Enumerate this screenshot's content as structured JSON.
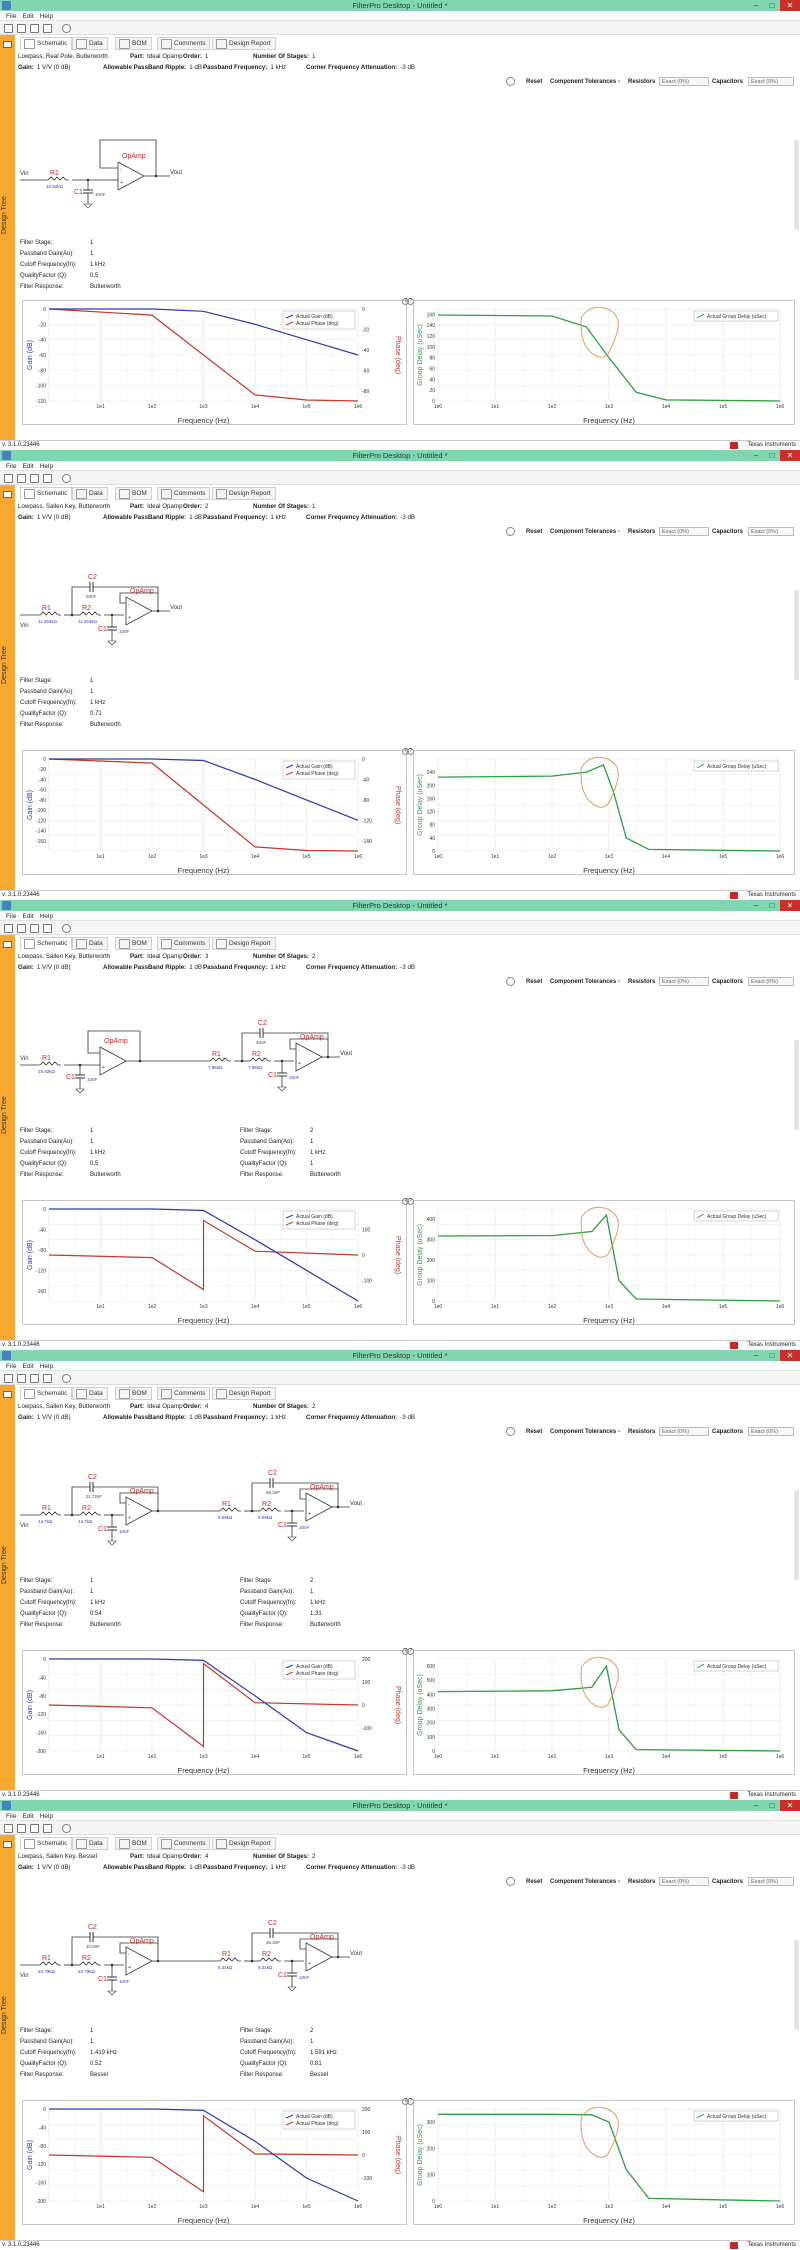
{
  "app": {
    "title": "FilterPro Desktop - Untitled *",
    "version": "v. 3.1.0.23446",
    "vendor": "Texas Instruments",
    "sidebar_label": "Design Tree",
    "menu": [
      "File",
      "Edit",
      "Help"
    ],
    "tabs": [
      "Schematic",
      "Data",
      "BOM",
      "Comments",
      "Design Report"
    ]
  },
  "labels": {
    "gain": "Gain:",
    "allowable_ripple": "Allowable PassBand Ripple:",
    "passband_frequency": "Passband Frequency:",
    "corner_attenuation": "Corner Frequency Attenuation:",
    "part": "Part:",
    "order": "Order:",
    "stages": "Number Of Stages:",
    "reset": "Reset",
    "tolerances": "Component Tolerances -",
    "resistors": "Resistors",
    "capacitors": "Capacitors",
    "filter_stage": "Filter Stage:",
    "passband_gain": "Passband Gain(Ao):",
    "cutoff": "Cutoff Frequency(fn):",
    "quality": "QualityFactor (Q):",
    "response": "Filter Response:",
    "freq_axis": "Frequency (Hz)",
    "gain_axis": "Gain (dB)",
    "phase_axis": "Phase (deg)",
    "delay_axis": "Group Delay (uSec)",
    "legend_gain": "Actual Gain (dB)",
    "legend_phase": "Actual Phase (deg)",
    "legend_delay": "Actual Group Delay (uSec)",
    "opamp": "OpAmp",
    "vin": "Vin",
    "vout": "Vout",
    "help": "?"
  },
  "icons": {
    "tabs": [
      "schematic-icon",
      "data-icon",
      "bom-icon",
      "comments-icon",
      "design-report-icon"
    ],
    "toolbar": [
      "home-icon",
      "new-icon",
      "open-icon",
      "save-icon",
      "help-icon"
    ]
  },
  "colors": {
    "titlebar": "#7fd6b1",
    "sidebar": "#f7a833",
    "gain": "#2b3aa8",
    "phase": "#c0392b",
    "delay": "#2e9e3e",
    "annotation": "#e0a060",
    "close": "#c9302c"
  },
  "chart_data": [
    {
      "type": "line",
      "design": "Lowpass, Real Pole, Butterworth",
      "x_ticks": [
        "1e0",
        "1e1",
        "1e2",
        "1e3",
        "1e4",
        "1e5",
        "1e6"
      ],
      "x_scale": "log",
      "gain": {
        "ylim": [
          -120,
          0
        ],
        "ticks": [
          "0",
          "-20",
          "-40",
          "-60",
          "-80",
          "-100",
          "-120"
        ],
        "series": [
          {
            "name": "Actual Gain (dB)",
            "x": [
              1,
              100,
              1000,
              10000,
              100000,
              1000000
            ],
            "y": [
              0,
              0,
              -3,
              -20,
              -40,
              -60
            ]
          }
        ]
      },
      "phase": {
        "ylim": [
          -90,
          0
        ],
        "ticks": [
          "0",
          "-20",
          "-40",
          "-60",
          "-80"
        ],
        "series": [
          {
            "name": "Actual Phase (deg)",
            "x": [
              1,
              100,
              1000,
              10000,
              100000,
              1000000
            ],
            "y": [
              0,
              -6,
              -45,
              -84,
              -89,
              -90
            ]
          }
        ]
      },
      "delay": {
        "ylim": [
          0,
          170
        ],
        "ticks": [
          "160",
          "140",
          "120",
          "100",
          "80",
          "60",
          "40",
          "20",
          "0"
        ],
        "series": [
          {
            "name": "Actual Group Delay (uSec)",
            "x": [
              1,
              100,
              400,
              1000,
              3000,
              10000,
              1000000
            ],
            "y": [
              159,
              157,
              137,
              80,
              16,
              2,
              0
            ]
          }
        ]
      }
    },
    {
      "type": "line",
      "design": "Lowpass, Sallen Key, Butterworth",
      "x_ticks": [
        "1e0",
        "1e1",
        "1e2",
        "1e3",
        "1e4",
        "1e5",
        "1e6"
      ],
      "x_scale": "log",
      "gain": {
        "ylim": [
          -180,
          0
        ],
        "ticks": [
          "0",
          "-20",
          "-40",
          "-60",
          "-80",
          "-100",
          "-120",
          "-140",
          "-160"
        ],
        "series": [
          {
            "name": "Actual Gain (dB)",
            "x": [
              1,
              100,
              1000,
              10000,
              100000,
              1000000
            ],
            "y": [
              0,
              0,
              -3,
              -40,
              -80,
              -120
            ]
          }
        ]
      },
      "phase": {
        "ylim": [
          -180,
          0
        ],
        "ticks": [
          "0",
          "-40",
          "-80",
          "-120",
          "-160"
        ],
        "series": [
          {
            "name": "Actual Phase (deg)",
            "x": [
              1,
              100,
              1000,
              10000,
              100000,
              1000000
            ],
            "y": [
              0,
              -8,
              -90,
              -172,
              -179,
              -180
            ]
          }
        ]
      },
      "delay": {
        "ylim": [
          0,
          280
        ],
        "ticks": [
          "240",
          "200",
          "160",
          "120",
          "80",
          "40",
          "0"
        ],
        "series": [
          {
            "name": "Actual Group Delay (uSec)",
            "x": [
              1,
              100,
              400,
              800,
              1200,
              2000,
              5000,
              1000000
            ],
            "y": [
              225,
              228,
              240,
              262,
              180,
              40,
              5,
              0
            ]
          }
        ]
      }
    },
    {
      "type": "line",
      "design": "Lowpass, Sallen Key, Butterworth",
      "x_ticks": [
        "1e0",
        "1e1",
        "1e2",
        "1e3",
        "1e4",
        "1e5",
        "1e6"
      ],
      "x_scale": "log",
      "gain": {
        "ylim": [
          -180,
          0
        ],
        "ticks": [
          "0",
          "-40",
          "-80",
          "-120",
          "-160"
        ],
        "series": [
          {
            "name": "Actual Gain (dB)",
            "x": [
              1,
              100,
              1000,
              10000,
              100000,
              1000000
            ],
            "y": [
              0,
              0,
              -3,
              -60,
              -120,
              -180
            ]
          }
        ]
      },
      "phase": {
        "ylim": [
          -180,
          180
        ],
        "ticks": [
          "100",
          "0",
          "-100"
        ],
        "series": [
          {
            "name": "Actual Phase (deg)",
            "x": [
              1,
              100,
              1000,
              1000,
              10000,
              1000000
            ],
            "y": [
              0,
              -10,
              -135,
              135,
              15,
              0
            ]
          }
        ]
      },
      "delay": {
        "ylim": [
          0,
          450
        ],
        "ticks": [
          "400",
          "300",
          "200",
          "100",
          "0"
        ],
        "series": [
          {
            "name": "Actual Group Delay (uSec)",
            "x": [
              1,
              100,
              500,
              900,
              1500,
              3000,
              1000000
            ],
            "y": [
              318,
              320,
              340,
              420,
              100,
              10,
              0
            ]
          }
        ]
      }
    },
    {
      "type": "line",
      "design": "Lowpass, Sallen Key, Butterworth",
      "x_ticks": [
        "1e0",
        "1e1",
        "1e2",
        "1e3",
        "1e4",
        "1e5",
        "1e6"
      ],
      "x_scale": "log",
      "gain": {
        "ylim": [
          -200,
          0
        ],
        "ticks": [
          "0",
          "-40",
          "-80",
          "-120",
          "-160",
          "-200"
        ],
        "series": [
          {
            "name": "Actual Gain (dB)",
            "x": [
              1,
              100,
              1000,
              10000,
              100000,
              1000000
            ],
            "y": [
              0,
              0,
              -3,
              -80,
              -160,
              -240
            ]
          }
        ]
      },
      "phase": {
        "ylim": [
          -200,
          200
        ],
        "ticks": [
          "200",
          "100",
          "0",
          "-100"
        ],
        "series": [
          {
            "name": "Actual Phase (deg)",
            "x": [
              1,
              100,
              1000,
              1000,
              10000,
              1000000
            ],
            "y": [
              0,
              -12,
              -180,
              180,
              10,
              0
            ]
          }
        ]
      },
      "delay": {
        "ylim": [
          0,
          650
        ],
        "ticks": [
          "600",
          "500",
          "400",
          "300",
          "200",
          "100",
          "0"
        ],
        "series": [
          {
            "name": "Actual Group Delay (uSec)",
            "x": [
              1,
              100,
              500,
              900,
              1500,
              3000,
              1000000
            ],
            "y": [
              420,
              425,
              450,
              600,
              150,
              10,
              0
            ]
          }
        ]
      }
    },
    {
      "type": "line",
      "design": "Lowpass, Sallen Key, Bessel",
      "x_ticks": [
        "1e0",
        "1e1",
        "1e2",
        "1e3",
        "1e4",
        "1e5",
        "1e6"
      ],
      "x_scale": "log",
      "gain": {
        "ylim": [
          -200,
          0
        ],
        "ticks": [
          "0",
          "-40",
          "-80",
          "-120",
          "-160",
          "-200"
        ],
        "series": [
          {
            "name": "Actual Gain (dB)",
            "x": [
              1,
              100,
              1000,
              10000,
              100000,
              1000000
            ],
            "y": [
              0,
              0,
              -3,
              -70,
              -150,
              -230
            ]
          }
        ]
      },
      "phase": {
        "ylim": [
          -200,
          200
        ],
        "ticks": [
          "200",
          "100",
          "0",
          "-100"
        ],
        "series": [
          {
            "name": "Actual Phase (deg)",
            "x": [
              1,
              100,
              1000,
              1000,
              10000,
              1000000
            ],
            "y": [
              0,
              -10,
              -160,
              170,
              5,
              0
            ]
          }
        ]
      },
      "delay": {
        "ylim": [
          0,
          350
        ],
        "ticks": [
          "300",
          "200",
          "100",
          "0"
        ],
        "series": [
          {
            "name": "Actual Group Delay (uSec)",
            "x": [
              1,
              100,
              500,
              1000,
              2000,
              5000,
              1000000
            ],
            "y": [
              330,
              330,
              328,
              300,
              120,
              10,
              0
            ]
          }
        ]
      }
    }
  ],
  "windows": [
    {
      "info": {
        "part_label": "Lowpass, Real Pole, Butterworth",
        "part": "Ideal Opamp",
        "order": "1",
        "stages": "1",
        "gain": "1 V/V (0 dB)",
        "ripple": "1 dB",
        "passband": "1 kHz",
        "attenuation": "-3 dB"
      },
      "tolerances": {
        "resistors": "Exact (0%)",
        "capacitors": "Exact (0%)"
      },
      "stages": [
        {
          "stage": "1",
          "gain": "1",
          "cutoff": "1 kHz",
          "q": "0.5",
          "response": "Butterworth"
        }
      ],
      "components": {
        "R1": "15.92kΩ",
        "C1": "10nF"
      }
    },
    {
      "info": {
        "part_label": "Lowpass, Sallen Key, Butterworth",
        "part": "Ideal Opamp",
        "order": "2",
        "stages": "1",
        "gain": "1 V/V (0 dB)",
        "ripple": "1 dB",
        "passband": "1 kHz",
        "attenuation": "-3 dB"
      },
      "tolerances": {
        "resistors": "Exact (0%)",
        "capacitors": "Exact (0%)"
      },
      "stages": [
        {
          "stage": "1",
          "gain": "1",
          "cutoff": "1 kHz",
          "q": "0.71",
          "response": "Butterworth"
        }
      ],
      "components": {
        "R1": "11.254kΩ",
        "R2": "11.254kΩ",
        "C2": "20nF",
        "C1": "10nF"
      }
    },
    {
      "info": {
        "part_label": "Lowpass, Sallen Key, Butterworth",
        "part": "Ideal Opamp",
        "order": "3",
        "stages": "2",
        "gain": "1 V/V (0 dB)",
        "ripple": "1 dB",
        "passband": "1 kHz",
        "attenuation": "-3 dB"
      },
      "tolerances": {
        "resistors": "Exact (0%)",
        "capacitors": "Exact (0%)"
      },
      "stages": [
        {
          "stage": "1",
          "gain": "1",
          "cutoff": "1 kHz",
          "q": "0.5",
          "response": "Butterworth"
        },
        {
          "stage": "2",
          "gain": "1",
          "cutoff": "1 kHz",
          "q": "1",
          "response": "Butterworth"
        }
      ],
      "components": {
        "R1": "15.92kΩ",
        "C1": "10nF",
        "R1b": "7.96kΩ",
        "R2b": "7.96kΩ",
        "C2b": "40nF",
        "C1b": "10nF"
      }
    },
    {
      "info": {
        "part_label": "Lowpass, Sallen Key, Butterworth",
        "part": "Ideal Opamp",
        "order": "4",
        "stages": "2",
        "gain": "1 V/V (0 dB)",
        "ripple": "1 dB",
        "passband": "1 kHz",
        "attenuation": "-3 dB"
      },
      "tolerances": {
        "resistors": "Exact (0%)",
        "capacitors": "Exact (0%)"
      },
      "stages": [
        {
          "stage": "1",
          "gain": "1",
          "cutoff": "1 kHz",
          "q": "0.54",
          "response": "Butterworth"
        },
        {
          "stage": "2",
          "gain": "1",
          "cutoff": "1 kHz",
          "q": "1.31",
          "response": "Butterworth"
        }
      ],
      "components": {
        "R1": "14.7kΩ",
        "R2": "14.7kΩ",
        "C2": "11.72nF",
        "C1": "10nF",
        "R1b": "6.09kΩ",
        "R2b": "6.09kΩ",
        "C2b": "68.3nF",
        "C1b": "10nF"
      }
    },
    {
      "info": {
        "part_label": "Lowpass, Sallen Key, Bessel",
        "part": "Ideal Opamp",
        "order": "4",
        "stages": "2",
        "gain": "1 V/V (0 dB)",
        "ripple": "1 dB",
        "passband": "1 kHz",
        "attenuation": "-3 dB"
      },
      "tolerances": {
        "resistors": "Exact (0%)",
        "capacitors": "Exact (0%)"
      },
      "stages": [
        {
          "stage": "1",
          "gain": "1",
          "cutoff": "1.419 kHz",
          "q": "0.52",
          "response": "Bessel"
        },
        {
          "stage": "2",
          "gain": "1",
          "cutoff": "1.591 kHz",
          "q": "0.81",
          "response": "Bessel"
        }
      ],
      "components": {
        "R1": "10.79kΩ",
        "R2": "10.79kΩ",
        "C2": "10.8nF",
        "C1": "10nF",
        "R1b": "6.21kΩ",
        "R2b": "6.21kΩ",
        "C2b": "26.3nF",
        "C1b": "10nF"
      }
    }
  ]
}
